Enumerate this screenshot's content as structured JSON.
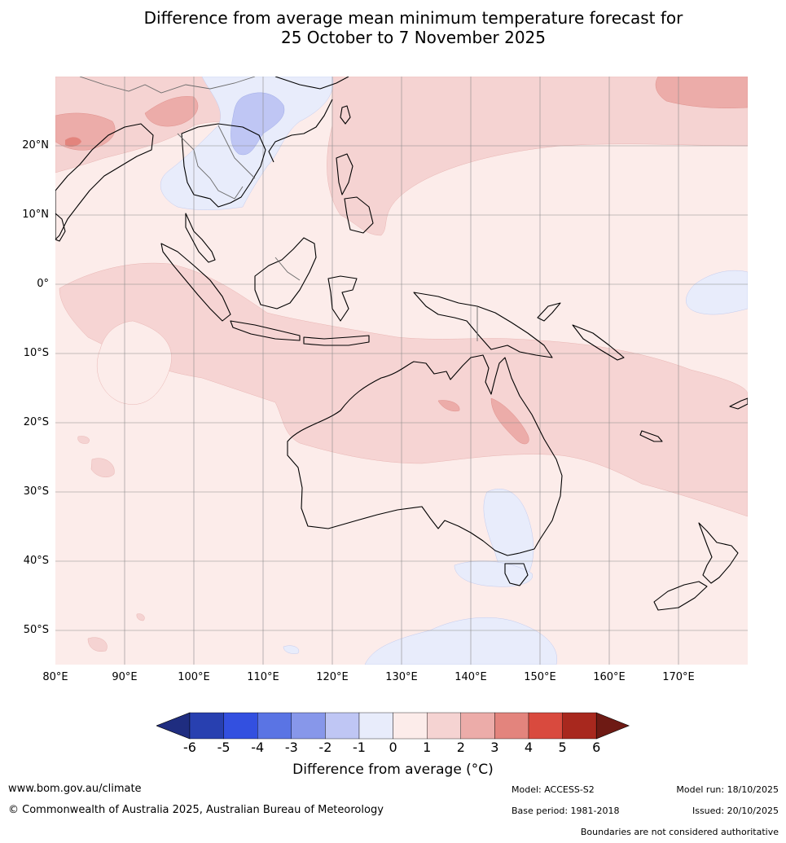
{
  "title": {
    "line1": "Difference from average mean minimum temperature forecast for",
    "line2": "25 October to 7 November 2025"
  },
  "map": {
    "lat_labels": [
      "20°N",
      "10°N",
      "0°",
      "10°S",
      "20°S",
      "30°S",
      "40°S",
      "50°S"
    ],
    "lon_labels": [
      "80°E",
      "90°E",
      "100°E",
      "110°E",
      "120°E",
      "130°E",
      "140°E",
      "150°E",
      "160°E",
      "170°E"
    ],
    "lon_range": [
      80,
      180
    ],
    "lat_range": [
      -55,
      30
    ]
  },
  "colorbar": {
    "ticks": [
      "-6",
      "-5",
      "-4",
      "-3",
      "-2",
      "-1",
      "0",
      "1",
      "2",
      "3",
      "4",
      "5",
      "6"
    ],
    "colors": [
      "#1f2d80",
      "#2840b0",
      "#3350e0",
      "#5a74e4",
      "#8797ea",
      "#bfc6f4",
      "#e8ecfb",
      "#fcecea",
      "#f5d3d2",
      "#ecaca9",
      "#e3847d",
      "#d94a3e",
      "#a8281e",
      "#6e1a14"
    ],
    "label": "Difference from average (°C)"
  },
  "footer": {
    "website": "www.bom.gov.au/climate",
    "copyright": "© Commonwealth of Australia 2025, Australian Bureau of Meteorology",
    "model": "Model: ACCESS-S2",
    "base_period": "Base period: 1981-2018",
    "model_run": "Model run: 18/10/2025",
    "issued": "Issued: 20/10/2025",
    "disclaimer": "Boundaries are not considered authoritative"
  }
}
